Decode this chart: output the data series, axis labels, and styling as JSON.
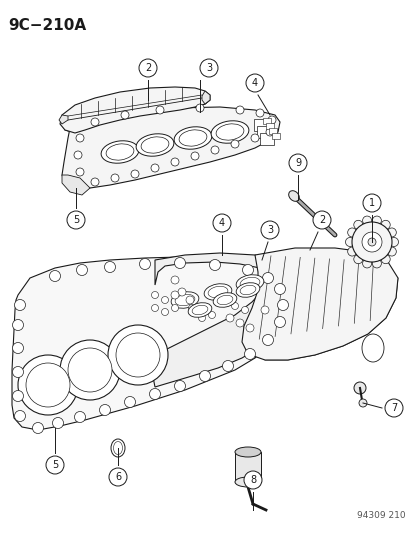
{
  "title": "9C−210A",
  "footer": "94309 210",
  "bg_color": "#ffffff",
  "line_color": "#1a1a1a",
  "fill_light": "#f5f5f5",
  "fill_mid": "#e8e8e8",
  "fill_dark": "#d0d0d0",
  "fig_w": 4.14,
  "fig_h": 5.33,
  "dpi": 100
}
